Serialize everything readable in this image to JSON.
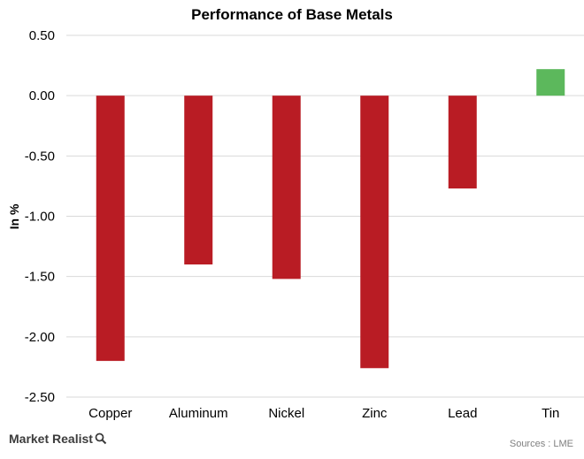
{
  "chart_data": {
    "type": "bar",
    "title": "Performance of Base Metals",
    "xlabel": "",
    "ylabel": "In %",
    "categories": [
      "Copper",
      "Aluminum",
      "Nickel",
      "Zinc",
      "Lead",
      "Tin"
    ],
    "values": [
      -2.2,
      -1.4,
      -1.52,
      -2.26,
      -0.77,
      0.22
    ],
    "ylim": [
      -2.5,
      0.5
    ],
    "yticks": [
      "0.50",
      "0.00",
      "-0.50",
      "-1.00",
      "-1.50",
      "-2.00",
      "-2.50"
    ],
    "ytick_values": [
      0.5,
      0.0,
      -0.5,
      -1.0,
      -1.5,
      -2.0,
      -2.5
    ],
    "grid": true,
    "legend": "none",
    "colors": {
      "negative": "#b91c24",
      "positive": "#5cb85c"
    }
  },
  "footer": {
    "brand": "Market Realist",
    "source": "Sources : LME"
  }
}
